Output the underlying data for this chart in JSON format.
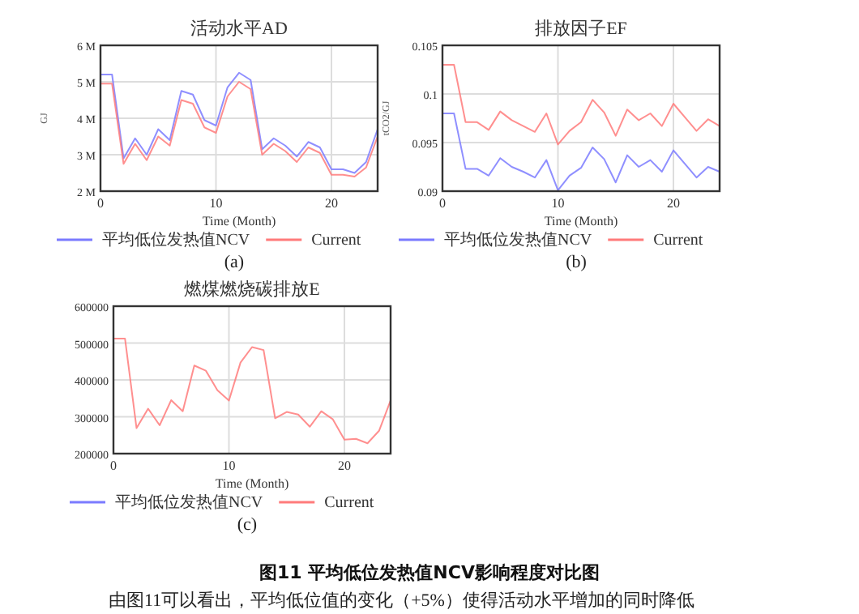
{
  "chart_data": [
    {
      "type": "line",
      "title": "活动水平AD",
      "xlabel": "Time (Month)",
      "ylabel": "GJ",
      "x": [
        0,
        1,
        2,
        3,
        4,
        5,
        6,
        7,
        8,
        9,
        10,
        11,
        12,
        13,
        14,
        15,
        16,
        17,
        18,
        19,
        20,
        21,
        22,
        23,
        24
      ],
      "xlim": [
        0,
        24
      ],
      "xticks": [
        0,
        10,
        20
      ],
      "ylim": [
        2000000,
        6000000
      ],
      "yticks": [
        {
          "value": 2000000,
          "label": "2 M"
        },
        {
          "value": 3000000,
          "label": "3 M"
        },
        {
          "value": 4000000,
          "label": "4 M"
        },
        {
          "value": 5000000,
          "label": "5 M"
        },
        {
          "value": 6000000,
          "label": "6 M"
        }
      ],
      "grid": true,
      "legend": "bottom",
      "annotations": [
        "(a)"
      ],
      "series": [
        {
          "name": "平均低位发热值NCV",
          "color": "#7b7bff",
          "values": [
            5200000,
            5200000,
            2900000,
            3450000,
            3000000,
            3700000,
            3400000,
            4750000,
            4650000,
            3950000,
            3800000,
            4850000,
            5250000,
            5050000,
            3150000,
            3450000,
            3250000,
            2950000,
            3350000,
            3200000,
            2600000,
            2600000,
            2500000,
            2800000,
            3700000
          ]
        },
        {
          "name": "Current",
          "color": "#ff7b7b",
          "values": [
            4950000,
            4950000,
            2750000,
            3300000,
            2850000,
            3500000,
            3250000,
            4500000,
            4400000,
            3750000,
            3600000,
            4600000,
            5000000,
            4800000,
            3000000,
            3300000,
            3100000,
            2800000,
            3200000,
            3050000,
            2450000,
            2450000,
            2400000,
            2650000,
            3500000
          ]
        }
      ]
    },
    {
      "type": "line",
      "title": "排放因子EF",
      "xlabel": "Time (Month)",
      "ylabel": "tCO2/GJ",
      "x": [
        0,
        1,
        2,
        3,
        4,
        5,
        6,
        7,
        8,
        9,
        10,
        11,
        12,
        13,
        14,
        15,
        16,
        17,
        18,
        19,
        20,
        21,
        22,
        23,
        24
      ],
      "xlim": [
        0,
        24
      ],
      "xticks": [
        0,
        10,
        20
      ],
      "ylim": [
        0.09,
        0.105
      ],
      "yticks": [
        0.09,
        0.095,
        0.1,
        0.105
      ],
      "grid": true,
      "legend": "bottom",
      "annotations": [
        "(b)"
      ],
      "series": [
        {
          "name": "平均低位发热值NCV",
          "color": "#7b7bff",
          "values": [
            0.098,
            0.098,
            0.0923,
            0.0923,
            0.0916,
            0.0934,
            0.0925,
            0.092,
            0.0914,
            0.0932,
            0.0901,
            0.0916,
            0.0924,
            0.0945,
            0.0933,
            0.0909,
            0.0937,
            0.0925,
            0.0932,
            0.092,
            0.0942,
            0.0928,
            0.0914,
            0.0925,
            0.092
          ]
        },
        {
          "name": "Current",
          "color": "#ff7b7b",
          "values": [
            0.103,
            0.103,
            0.0971,
            0.0971,
            0.0963,
            0.0982,
            0.0973,
            0.0967,
            0.0961,
            0.098,
            0.0948,
            0.0962,
            0.0971,
            0.0994,
            0.0981,
            0.0957,
            0.0984,
            0.0973,
            0.098,
            0.0967,
            0.099,
            0.0976,
            0.0962,
            0.0974,
            0.0967
          ]
        }
      ]
    },
    {
      "type": "line",
      "title": "燃煤燃烧碳排放E",
      "xlabel": "Time (Month)",
      "x": [
        0,
        1,
        2,
        3,
        4,
        5,
        6,
        7,
        8,
        9,
        10,
        11,
        12,
        13,
        14,
        15,
        16,
        17,
        18,
        19,
        20,
        21,
        22,
        23,
        24
      ],
      "xlim": [
        0,
        24
      ],
      "xticks": [
        0,
        10,
        20
      ],
      "ylim": [
        200000,
        600000
      ],
      "yticks": [
        200000,
        300000,
        400000,
        500000,
        600000
      ],
      "grid": true,
      "legend": "bottom",
      "annotations": [
        "(c)",
        "图11 平均低位发热值NCV影响程度对比图",
        "由图11可以看出，平均低位值的变化（+5%）使得活动水平增加的同时降低"
      ],
      "series": [
        {
          "name": "平均低位发热值NCV",
          "color": "#7b7bff",
          "values": [
            null,
            null,
            null,
            null,
            null,
            null,
            null,
            null,
            null,
            null,
            null,
            null,
            null,
            null,
            null,
            null,
            null,
            null,
            null,
            null,
            null,
            null,
            null,
            null,
            null
          ]
        },
        {
          "name": "Current",
          "color": "#ff7b7b",
          "values": [
            512000,
            512000,
            269000,
            322000,
            277000,
            345000,
            315000,
            439000,
            425000,
            372000,
            344000,
            447000,
            489000,
            481000,
            296000,
            313000,
            306000,
            273000,
            315000,
            293000,
            238000,
            240000,
            228000,
            262000,
            344000
          ]
        }
      ]
    }
  ]
}
